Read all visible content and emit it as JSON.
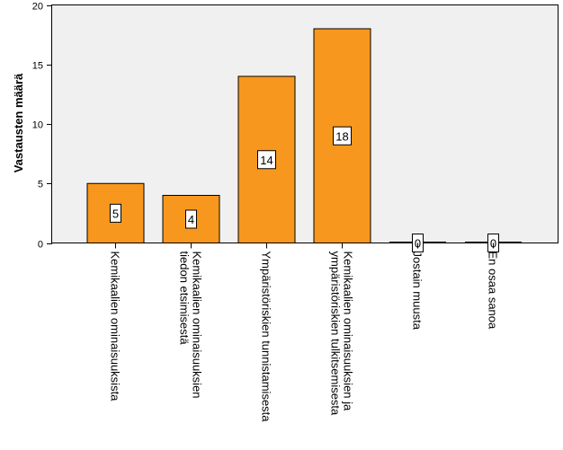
{
  "chart_data": {
    "type": "bar",
    "title": "",
    "xlabel": "",
    "ylabel": "Vastausten määrä",
    "ylim": [
      0,
      20
    ],
    "yticks": [
      0,
      5,
      10,
      15,
      20
    ],
    "grid": false,
    "categories": [
      [
        "Kemikaalien ominaisuuksista"
      ],
      [
        "Kemikaalien ominaisuuksien",
        "tiedon etsimisestä"
      ],
      [
        "Ympäristöriskien tunnistamisesta"
      ],
      [
        "Kemikaalien ominaisuuksien ja",
        "ympäristöriskien tulkitsemisesta"
      ],
      [
        "Jostain muusta"
      ],
      [
        "En osaa sanoa"
      ]
    ],
    "values": [
      5,
      4,
      14,
      18,
      0,
      0
    ],
    "colors": {
      "bar_fill": "#f7971d",
      "bar_stroke": "#000000",
      "plot_bg": "#f0f0f0",
      "plot_border": "#000000"
    }
  }
}
